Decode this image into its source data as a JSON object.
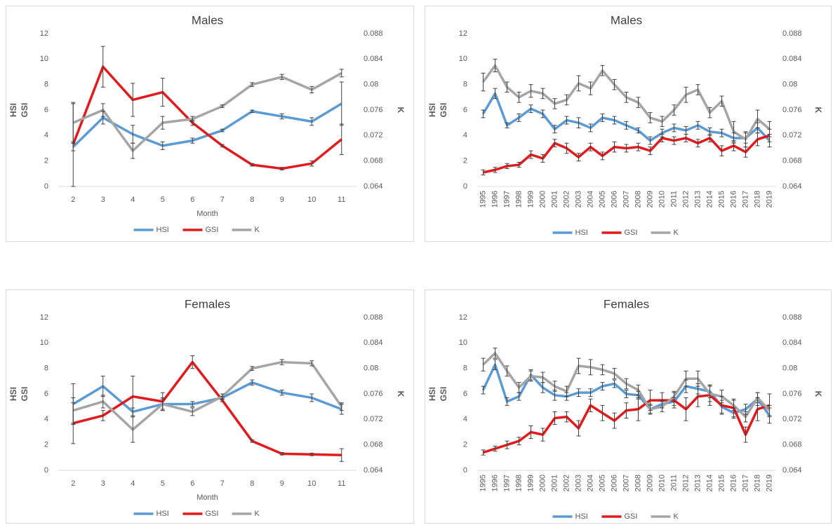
{
  "chart_data": [
    {
      "type": "line",
      "title": "Males",
      "xlabel": "Month",
      "ylabels": [
        {
          "text": "HSI",
          "color": "#2eb5e8"
        },
        {
          "text": "GSI",
          "color": "#e00000"
        }
      ],
      "y2label": {
        "text": "K",
        "color": "#92d050"
      },
      "categories": [
        "2",
        "3",
        "4",
        "5",
        "6",
        "7",
        "8",
        "9",
        "10",
        "11"
      ],
      "ylim": [
        0,
        12
      ],
      "yticks": [
        0,
        2,
        4,
        6,
        8,
        10,
        12
      ],
      "y2lim": [
        0.064,
        0.088
      ],
      "y2ticks": [
        0.064,
        0.068,
        0.072,
        0.076,
        0.08,
        0.084,
        0.088
      ],
      "series": [
        {
          "name": "HSI",
          "color": "#5b9bd5",
          "values": [
            3.1,
            5.4,
            4.1,
            3.2,
            3.6,
            4.4,
            5.9,
            5.5,
            5.1,
            6.5
          ],
          "errors": [
            0.3,
            0.5,
            0.7,
            0.3,
            0.2,
            0.1,
            0.1,
            0.2,
            0.3,
            1.7
          ]
        },
        {
          "name": "GSI",
          "color": "#e31a1c",
          "values": [
            3.3,
            9.4,
            6.8,
            7.4,
            5.0,
            3.2,
            1.7,
            1.4,
            1.8,
            3.7
          ],
          "errors": [
            3.3,
            1.6,
            1.3,
            1.1,
            0.2,
            0.1,
            0.1,
            0.1,
            0.2,
            1.2
          ]
        },
        {
          "name": "K",
          "color": "#a5a5a5",
          "axis": "y2",
          "values": [
            0.074,
            0.076,
            0.0696,
            0.074,
            0.0746,
            0.0766,
            0.08,
            0.0812,
            0.0792,
            0.0818
          ],
          "errors": [
            0.003,
            0.001,
            0.0012,
            0.001,
            0.0004,
            0.0002,
            0.0003,
            0.0004,
            0.0005,
            0.0006
          ]
        }
      ]
    },
    {
      "type": "line",
      "title": "Males",
      "ylabels": [
        {
          "text": "HSI",
          "color": "#2eb5e8"
        },
        {
          "text": "GSI",
          "color": "#e00000"
        }
      ],
      "y2label": {
        "text": "K",
        "color": "#92d050"
      },
      "categories": [
        "1995",
        "1996",
        "1997",
        "1998",
        "1999",
        "2000",
        "2001",
        "2002",
        "2003",
        "2004",
        "2005",
        "2006",
        "2007",
        "2008",
        "2009",
        "2010",
        "2011",
        "2012",
        "2013",
        "2014",
        "2015",
        "2016",
        "2017",
        "2018",
        "2019"
      ],
      "ylim": [
        0,
        12
      ],
      "yticks": [
        0,
        2,
        4,
        6,
        8,
        10,
        12
      ],
      "y2lim": [
        0.064,
        0.088
      ],
      "y2ticks": [
        0.064,
        0.068,
        0.072,
        0.076,
        0.08,
        0.084,
        0.088
      ],
      "series": [
        {
          "name": "HSI",
          "color": "#5b9bd5",
          "values": [
            5.7,
            7.3,
            4.8,
            5.4,
            6.1,
            5.7,
            4.5,
            5.2,
            5.0,
            4.6,
            5.4,
            5.2,
            4.8,
            4.4,
            3.6,
            4.2,
            4.6,
            4.4,
            4.8,
            4.3,
            4.2,
            3.8,
            3.8,
            4.6,
            3.6
          ],
          "errors": [
            0.3,
            0.4,
            0.2,
            0.3,
            0.3,
            0.3,
            0.3,
            0.3,
            0.4,
            0.3,
            0.3,
            0.3,
            0.3,
            0.2,
            0.3,
            0.3,
            0.3,
            0.3,
            0.3,
            0.3,
            0.3,
            0.4,
            0.4,
            0.4,
            0.5
          ]
        },
        {
          "name": "GSI",
          "color": "#e31a1c",
          "values": [
            1.1,
            1.3,
            1.6,
            1.7,
            2.5,
            2.2,
            3.4,
            3.0,
            2.3,
            3.1,
            2.4,
            3.1,
            3.0,
            3.1,
            2.8,
            3.8,
            3.6,
            3.8,
            3.4,
            3.8,
            2.8,
            3.2,
            2.7,
            3.7,
            4.0
          ],
          "errors": [
            0.2,
            0.2,
            0.2,
            0.2,
            0.3,
            0.3,
            0.3,
            0.4,
            0.3,
            0.3,
            0.3,
            0.4,
            0.3,
            0.3,
            0.3,
            0.3,
            0.3,
            0.3,
            0.3,
            0.3,
            0.4,
            0.4,
            0.4,
            0.5,
            0.5
          ]
        },
        {
          "name": "K",
          "color": "#a5a5a5",
          "axis": "y2",
          "values": [
            0.0804,
            0.083,
            0.0796,
            0.078,
            0.079,
            0.0786,
            0.077,
            0.0776,
            0.0802,
            0.0794,
            0.0822,
            0.08,
            0.078,
            0.0772,
            0.0748,
            0.0742,
            0.076,
            0.0784,
            0.0792,
            0.0756,
            0.0774,
            0.0726,
            0.0714,
            0.0746,
            0.073
          ],
          "errors": [
            0.0014,
            0.001,
            0.0008,
            0.0008,
            0.001,
            0.0008,
            0.0008,
            0.0008,
            0.0012,
            0.001,
            0.0008,
            0.0008,
            0.0008,
            0.0008,
            0.0008,
            0.0008,
            0.0008,
            0.0012,
            0.0008,
            0.0008,
            0.0008,
            0.0016,
            0.0012,
            0.0014,
            0.0012
          ]
        }
      ]
    },
    {
      "type": "line",
      "title": "Females",
      "xlabel": "Month",
      "ylabels": [
        {
          "text": "HSI",
          "color": "#2eb5e8"
        },
        {
          "text": "GSI",
          "color": "#e00000"
        }
      ],
      "y2label": {
        "text": "K",
        "color": "#92d050"
      },
      "categories": [
        "2",
        "3",
        "4",
        "5",
        "6",
        "7",
        "8",
        "9",
        "10",
        "11"
      ],
      "ylim": [
        0,
        12
      ],
      "yticks": [
        0,
        2,
        4,
        6,
        8,
        10,
        12
      ],
      "y2lim": [
        0.064,
        0.088
      ],
      "y2ticks": [
        0.064,
        0.068,
        0.072,
        0.076,
        0.08,
        0.084,
        0.088
      ],
      "series": [
        {
          "name": "HSI",
          "color": "#5b9bd5",
          "values": [
            5.2,
            6.6,
            4.6,
            5.2,
            5.2,
            5.7,
            6.9,
            6.1,
            5.7,
            4.8
          ],
          "errors": [
            1.6,
            0.8,
            0.3,
            0.5,
            0.2,
            0.1,
            0.2,
            0.2,
            0.3,
            0.4
          ]
        },
        {
          "name": "GSI",
          "color": "#e31a1c",
          "values": [
            3.7,
            4.3,
            5.8,
            5.4,
            8.5,
            5.5,
            2.3,
            1.3,
            1.25,
            1.2
          ],
          "errors": [
            1.6,
            0.4,
            1.6,
            0.7,
            0.5,
            0.1,
            0.1,
            0.1,
            0.1,
            0.5
          ]
        },
        {
          "name": "K",
          "color": "#a5a5a5",
          "axis": "y2",
          "values": [
            0.0734,
            0.0748,
            0.0704,
            0.0744,
            0.0732,
            0.0756,
            0.08,
            0.081,
            0.0808,
            0.074
          ],
          "errors": [
            0.002,
            0.001,
            0.002,
            0.0008,
            0.0006,
            0.0004,
            0.0003,
            0.0004,
            0.0004,
            0.0006
          ]
        }
      ]
    },
    {
      "type": "line",
      "title": "Females",
      "ylabels": [
        {
          "text": "HSI",
          "color": "#2eb5e8"
        },
        {
          "text": "GSI",
          "color": "#e00000"
        }
      ],
      "y2label": {
        "text": "K",
        "color": "#92d050"
      },
      "categories": [
        "1995",
        "1996",
        "1997",
        "1998",
        "1999",
        "2000",
        "2001",
        "2002",
        "2003",
        "2004",
        "2005",
        "2006",
        "2007",
        "2008",
        "2009",
        "2010",
        "2011",
        "2012",
        "2013",
        "2014",
        "2015",
        "2016",
        "2017",
        "2018",
        "2019"
      ],
      "ylim": [
        0,
        12
      ],
      "yticks": [
        0,
        2,
        4,
        6,
        8,
        10,
        12
      ],
      "y2lim": [
        0.064,
        0.088
      ],
      "y2ticks": [
        0.064,
        0.068,
        0.072,
        0.076,
        0.08,
        0.084,
        0.088
      ],
      "series": [
        {
          "name": "HSI",
          "color": "#5b9bd5",
          "values": [
            6.3,
            8.3,
            5.4,
            5.8,
            7.5,
            6.5,
            5.9,
            5.8,
            6.1,
            6.1,
            6.6,
            6.8,
            6.0,
            5.9,
            4.8,
            5.2,
            5.4,
            6.6,
            6.4,
            6.2,
            5.0,
            4.5,
            4.8,
            5.6,
            4.3
          ],
          "errors": [
            0.3,
            0.4,
            0.3,
            0.3,
            0.4,
            0.4,
            0.4,
            0.3,
            0.3,
            0.3,
            0.3,
            0.3,
            0.3,
            0.3,
            0.3,
            0.3,
            0.3,
            0.5,
            0.4,
            0.5,
            0.5,
            0.4,
            0.4,
            0.5,
            0.6
          ]
        },
        {
          "name": "GSI",
          "color": "#e31a1c",
          "values": [
            1.4,
            1.7,
            2.0,
            2.3,
            3.0,
            2.8,
            4.1,
            4.2,
            3.3,
            5.1,
            4.5,
            3.9,
            4.7,
            4.8,
            5.5,
            5.5,
            5.5,
            4.8,
            5.8,
            5.9,
            5.1,
            4.9,
            2.8,
            4.8,
            5.1
          ],
          "errors": [
            0.2,
            0.2,
            0.3,
            0.3,
            0.5,
            0.5,
            0.5,
            0.4,
            0.6,
            0.5,
            0.6,
            0.6,
            0.6,
            0.9,
            0.8,
            0.6,
            0.6,
            0.9,
            0.8,
            0.8,
            0.7,
            0.7,
            0.6,
            0.9,
            0.9
          ]
        },
        {
          "name": "K",
          "color": "#a5a5a5",
          "axis": "y2",
          "values": [
            0.0806,
            0.0824,
            0.0796,
            0.077,
            0.0788,
            0.0786,
            0.0772,
            0.0764,
            0.0804,
            0.0802,
            0.0798,
            0.0792,
            0.0776,
            0.0766,
            0.0736,
            0.074,
            0.0756,
            0.0784,
            0.0784,
            0.076,
            0.0756,
            0.0742,
            0.0724,
            0.0754,
            0.0734
          ],
          "errors": [
            0.001,
            0.0008,
            0.0008,
            0.0008,
            0.0008,
            0.0008,
            0.0008,
            0.0008,
            0.0012,
            0.0012,
            0.0008,
            0.0008,
            0.0008,
            0.0008,
            0.0008,
            0.0008,
            0.0008,
            0.0012,
            0.0012,
            0.0012,
            0.001,
            0.0008,
            0.0008,
            0.0008,
            0.0008
          ]
        }
      ]
    }
  ]
}
